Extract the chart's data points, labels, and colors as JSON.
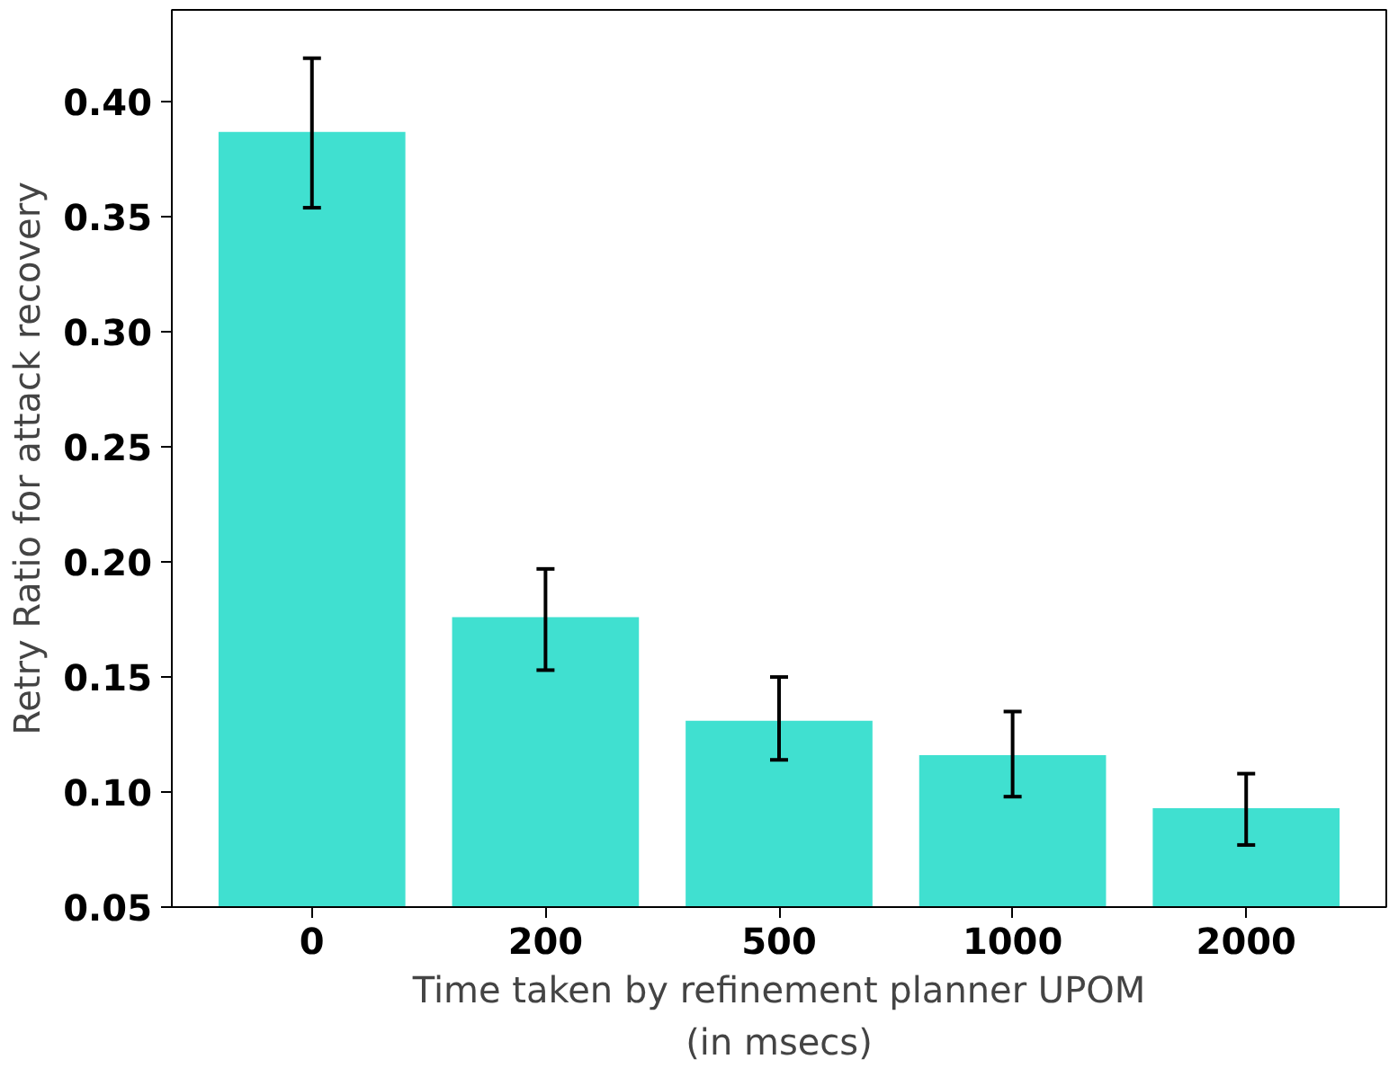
{
  "chart_data": {
    "type": "bar",
    "xlabel": "Time taken by refinement planner UPOM\n(in msecs)",
    "ylabel": "Retry Ratio for attack recovery",
    "categories": [
      "0",
      "200",
      "500",
      "1000",
      "2000"
    ],
    "values": [
      0.387,
      0.176,
      0.131,
      0.116,
      0.093
    ],
    "errors": [
      [
        0.354,
        0.419
      ],
      [
        0.153,
        0.197
      ],
      [
        0.114,
        0.15
      ],
      [
        0.098,
        0.135
      ],
      [
        0.077,
        0.108
      ]
    ],
    "color": "#40e0d0",
    "ylim": [
      0.05,
      0.44
    ],
    "yticks": [
      0.05,
      {
        "value": 0.1,
        "label": "0.10"
      },
      0.15,
      {
        "value": 0.2,
        "label": "0.20"
      },
      0.25,
      {
        "value": 0.3,
        "label": "0.30"
      },
      0.35,
      {
        "value": 0.4,
        "label": "0.40"
      }
    ],
    "grid": false
  }
}
